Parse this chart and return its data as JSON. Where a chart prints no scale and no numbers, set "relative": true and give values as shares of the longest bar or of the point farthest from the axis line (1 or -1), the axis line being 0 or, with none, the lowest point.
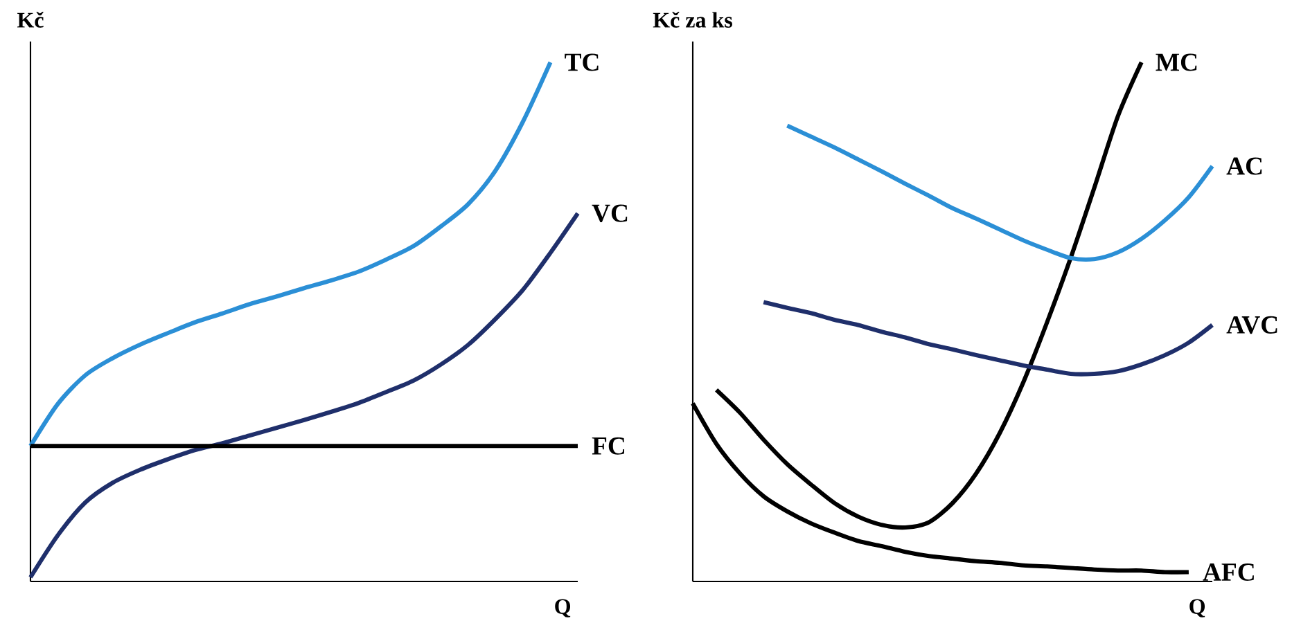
{
  "chart_data": [
    {
      "type": "line",
      "relative": true,
      "xlabel": "Q",
      "ylabel": "Kč",
      "categories": [
        null,
        null,
        null,
        null,
        null,
        null,
        null,
        null,
        null,
        null,
        null,
        null,
        null,
        null,
        null,
        null,
        null,
        null,
        null,
        null,
        null
      ],
      "series": [
        {
          "name": "TC",
          "color": "#2b8fd6",
          "values": [
            0.261,
            0.342,
            0.397,
            0.43,
            0.456,
            0.478,
            0.499,
            0.516,
            0.534,
            0.549,
            0.565,
            0.58,
            0.597,
            0.62,
            0.646,
            0.684,
            0.727,
            0.792,
            0.886,
            1.0,
            null
          ]
        },
        {
          "name": "VC",
          "color": "#1f2f6b",
          "values": [
            0.008,
            0.089,
            0.152,
            0.19,
            0.215,
            0.235,
            0.253,
            0.266,
            0.281,
            0.296,
            0.311,
            0.327,
            0.344,
            0.365,
            0.387,
            0.418,
            0.456,
            0.506,
            0.562,
            0.633,
            0.709
          ]
        },
        {
          "name": "FC",
          "color": "#000000",
          "values": [
            0.261,
            0.261,
            0.261,
            0.261,
            0.261,
            0.261,
            0.261,
            0.261,
            0.261,
            0.261,
            0.261,
            0.261,
            0.261,
            0.261,
            0.261,
            0.261,
            0.261,
            0.261,
            0.261,
            0.261,
            0.261
          ]
        }
      ]
    },
    {
      "type": "line",
      "relative": true,
      "xlabel": "Q",
      "ylabel": "Kč za ks",
      "categories": [
        null,
        null,
        null,
        null,
        null,
        null,
        null,
        null,
        null,
        null,
        null,
        null,
        null,
        null,
        null,
        null,
        null,
        null,
        null,
        null,
        null,
        null,
        null
      ],
      "series": [
        {
          "name": "MC",
          "color": "#000000",
          "values": [
            null,
            0.369,
            0.325,
            0.273,
            0.226,
            0.187,
            0.151,
            0.125,
            0.109,
            0.104,
            0.114,
            0.151,
            0.208,
            0.286,
            0.384,
            0.499,
            0.623,
            0.758,
            0.896,
            1.0,
            null,
            null,
            null
          ]
        },
        {
          "name": "AC",
          "color": "#2b8fd6",
          "values": [
            null,
            null,
            null,
            null,
            0.878,
            0.857,
            0.836,
            0.813,
            0.79,
            0.766,
            0.743,
            0.719,
            0.699,
            0.678,
            0.657,
            0.639,
            0.623,
            0.621,
            0.634,
            0.66,
            0.696,
            0.74,
            0.8
          ]
        },
        {
          "name": "AVC",
          "color": "#1f2f6b",
          "values": [
            null,
            null,
            null,
            0.538,
            0.527,
            0.517,
            0.504,
            0.494,
            0.481,
            0.47,
            0.457,
            0.447,
            0.436,
            0.426,
            0.416,
            0.408,
            0.4,
            0.4,
            0.405,
            0.418,
            0.436,
            0.46,
            0.494
          ]
        },
        {
          "name": "AFC",
          "color": "#000000",
          "values": [
            0.343,
            0.265,
            0.208,
            0.164,
            0.135,
            0.112,
            0.094,
            0.078,
            0.068,
            0.057,
            0.049,
            0.044,
            0.039,
            0.036,
            0.031,
            0.029,
            0.026,
            0.023,
            0.021,
            0.021,
            0.018,
            0.018,
            null
          ]
        }
      ]
    }
  ]
}
